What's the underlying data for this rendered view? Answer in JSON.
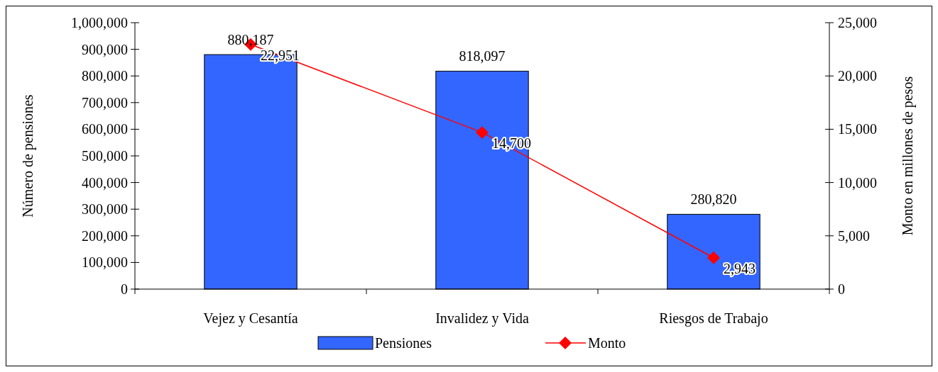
{
  "chart_data": {
    "type": "bar",
    "ylabel": "Número de pensiones",
    "y2label": "Monto en millones de pesos",
    "categories": [
      "Vejez y Cesantía",
      "Invalidez y Vida",
      "Riesgos de Trabajo"
    ],
    "series": [
      {
        "name": "Pensiones",
        "color": "#3366ff",
        "values": [
          880187,
          818097,
          280820
        ],
        "value_labels": [
          "880,187",
          "818,097",
          "280,820"
        ]
      },
      {
        "name": "Monto",
        "type": "line",
        "axis": "y2",
        "color": "#ff0000",
        "values": [
          22951,
          14700,
          2943
        ],
        "value_labels": [
          "22,951",
          "14,700",
          "2,943"
        ],
        "marker": "diamond"
      }
    ],
    "ylim": [
      0,
      1000000
    ],
    "yticks": [
      {
        "value": 0,
        "label": "0"
      },
      {
        "value": 100000,
        "label": "100,000"
      },
      {
        "value": 200000,
        "label": "200,000"
      },
      {
        "value": 300000,
        "label": "300,000"
      },
      {
        "value": 400000,
        "label": "400,000"
      },
      {
        "value": 500000,
        "label": "500,000"
      },
      {
        "value": 600000,
        "label": "600,000"
      },
      {
        "value": 700000,
        "label": "700,000"
      },
      {
        "value": 800000,
        "label": "800,000"
      },
      {
        "value": 900000,
        "label": "900,000"
      },
      {
        "value": 1000000,
        "label": "1,000,000"
      }
    ],
    "y2lim": [
      0,
      25000
    ],
    "y2ticks": [
      {
        "value": 0,
        "label": "0"
      },
      {
        "value": 5000,
        "label": "5,000"
      },
      {
        "value": 10000,
        "label": "10,000"
      },
      {
        "value": 15000,
        "label": "15,000"
      },
      {
        "value": 20000,
        "label": "20,000"
      },
      {
        "value": 25000,
        "label": "25,000"
      }
    ],
    "grid": false,
    "legend": "bottom"
  }
}
